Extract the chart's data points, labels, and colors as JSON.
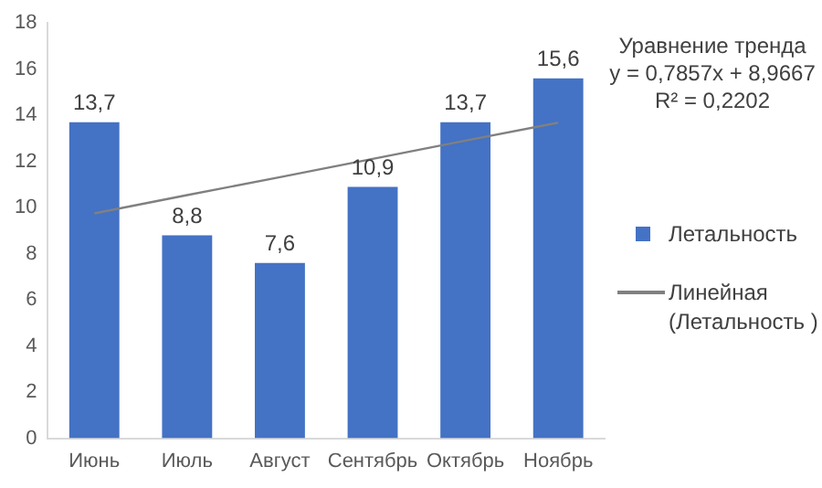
{
  "chart_data": {
    "type": "bar",
    "categories": [
      "Июнь",
      "Июль",
      "Август",
      "Сентябрь",
      "Октябрь",
      "Ноябрь"
    ],
    "series": [
      {
        "name": "Летальность",
        "color": "#4472c4",
        "values": [
          13.7,
          8.8,
          7.6,
          10.9,
          13.7,
          15.6
        ],
        "value_labels": [
          "13,7",
          "8,8",
          "7,6",
          "10,9",
          "13,7",
          "15,6"
        ]
      },
      {
        "name": "Линейная (Летальность )",
        "type": "line",
        "color": "#808080",
        "marker": "none",
        "values": [
          9.75,
          10.54,
          11.32,
          12.11,
          12.9,
          13.68
        ]
      }
    ],
    "ylim": [
      0,
      18
    ],
    "yticks": [
      0,
      2,
      4,
      6,
      8,
      10,
      12,
      14,
      16,
      18
    ],
    "grid": false,
    "legend": "right",
    "annotations": [
      "Уравнение тренда",
      "y = 0,7857x + 8,9667",
      "R² = 0,2202"
    ]
  }
}
